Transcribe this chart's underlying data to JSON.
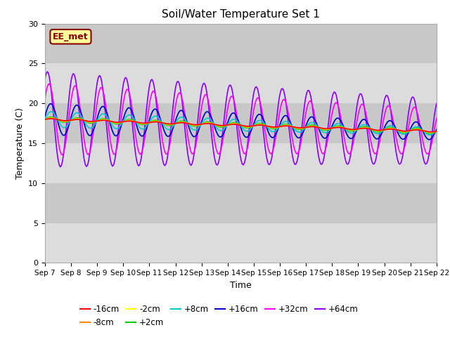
{
  "title": "Soil/Water Temperature Set 1",
  "xlabel": "Time",
  "ylabel": "Temperature (C)",
  "xlim": [
    0,
    15
  ],
  "ylim": [
    0,
    30
  ],
  "yticks": [
    0,
    5,
    10,
    15,
    20,
    25,
    30
  ],
  "xtick_labels": [
    "Sep 7",
    "Sep 8",
    "Sep 9",
    "Sep 10",
    "Sep 11",
    "Sep 12",
    "Sep 13",
    "Sep 14",
    "Sep 15",
    "Sep 16",
    "Sep 17",
    "Sep 18",
    "Sep 19",
    "Sep 20",
    "Sep 21",
    "Sep 22"
  ],
  "annotation_text": "EE_met",
  "background_color": "#dcdcdc",
  "band_colors": [
    "#dcdcdc",
    "#c8c8c8"
  ],
  "series": {
    "-16cm": {
      "color": "#ff0000",
      "lw": 1.2,
      "zorder": 8
    },
    "-8cm": {
      "color": "#ff8800",
      "lw": 1.2,
      "zorder": 7
    },
    "-2cm": {
      "color": "#ffff00",
      "lw": 1.2,
      "zorder": 6
    },
    "+2cm": {
      "color": "#00cc00",
      "lw": 1.2,
      "zorder": 5
    },
    "+8cm": {
      "color": "#00cccc",
      "lw": 1.2,
      "zorder": 4
    },
    "+16cm": {
      "color": "#0000cc",
      "lw": 1.2,
      "zorder": 3
    },
    "+32cm": {
      "color": "#ff00ff",
      "lw": 1.2,
      "zorder": 2
    },
    "+64cm": {
      "color": "#8800ff",
      "lw": 1.2,
      "zorder": 1
    }
  },
  "legend_row1": [
    "-16cm",
    "-8cm",
    "-2cm",
    "+2cm",
    "+8cm",
    "+16cm"
  ],
  "legend_row2": [
    "+32cm",
    "+64cm"
  ]
}
